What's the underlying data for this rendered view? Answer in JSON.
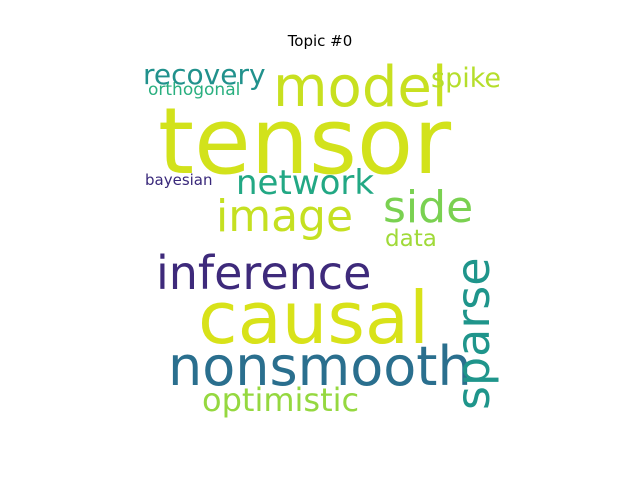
{
  "title": "Topic #0",
  "words": [
    {
      "text": "tensor",
      "color": "#d2e21b"
    },
    {
      "text": "model",
      "color": "#c8e020"
    },
    {
      "text": "causal",
      "color": "#d8e219"
    },
    {
      "text": "inference",
      "color": "#3e2a7b"
    },
    {
      "text": "nonsmooth",
      "color": "#2a6f8e"
    },
    {
      "text": "image",
      "color": "#c5e021"
    },
    {
      "text": "side",
      "color": "#7ad151"
    },
    {
      "text": "sparse",
      "color": "#1f958b"
    },
    {
      "text": "network",
      "color": "#22a884"
    },
    {
      "text": "recovery",
      "color": "#21918c"
    },
    {
      "text": "optimistic",
      "color": "#95d840"
    },
    {
      "text": "spike",
      "color": "#b5de2b"
    },
    {
      "text": "data",
      "color": "#a0da39"
    },
    {
      "text": "orthogonal",
      "color": "#29af7f"
    },
    {
      "text": "bayesian",
      "color": "#39287a"
    }
  ]
}
